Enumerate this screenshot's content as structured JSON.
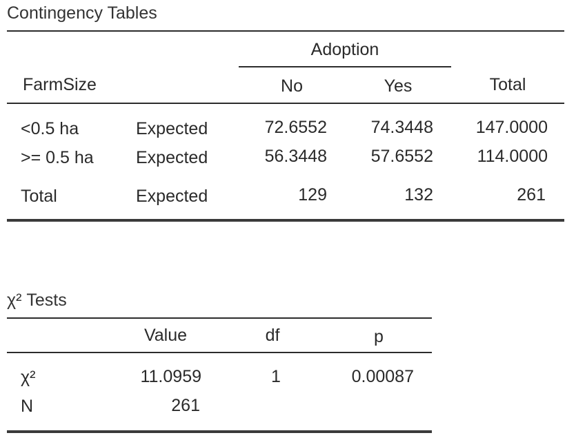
{
  "contingency": {
    "title": "Contingency Tables",
    "group_header": "Adoption",
    "row_var": "FarmSize",
    "col_headers": [
      "No",
      "Yes",
      "Total"
    ],
    "rows": [
      {
        "label": "<0.5 ha",
        "type": "Expected",
        "no": "72.6552",
        "yes": "74.3448",
        "total": "147.0000"
      },
      {
        "label": ">= 0.5 ha",
        "type": "Expected",
        "no": "56.3448",
        "yes": "57.6552",
        "total": "114.0000"
      },
      {
        "label": "Total",
        "type": "Expected",
        "no": "129",
        "yes": "132",
        "total": "261"
      }
    ]
  },
  "chi_tests": {
    "title": "χ² Tests",
    "headers": [
      "Value",
      "df",
      "p"
    ],
    "rows": [
      {
        "label": "χ²",
        "value": "11.0959",
        "df": "1",
        "p": "0.00087"
      },
      {
        "label": "N",
        "value": "261",
        "df": "",
        "p": ""
      }
    ]
  }
}
